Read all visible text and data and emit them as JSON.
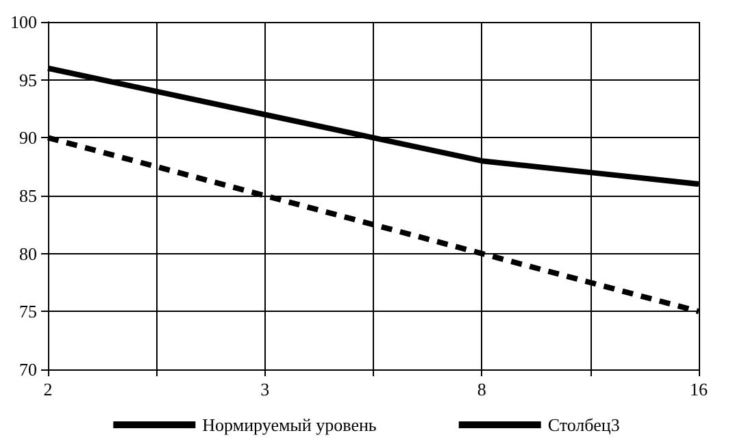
{
  "chart_data": {
    "type": "line",
    "categories": [
      "2",
      null,
      "3",
      null,
      "8",
      null,
      "16"
    ],
    "series": [
      {
        "name": "Нормируемый уровень",
        "color": "#000000",
        "line_style": "dashed",
        "values": [
          90,
          87.5,
          85,
          82.5,
          80,
          77.5,
          75
        ]
      },
      {
        "name": "Столбец3",
        "color": "#000000",
        "line_style": "solid",
        "values": [
          96,
          94,
          92,
          90,
          88,
          87,
          86
        ]
      }
    ],
    "ylim": [
      70,
      100
    ],
    "yticks": [
      70,
      75,
      80,
      85,
      90,
      95,
      100
    ],
    "grid": true,
    "legend": "bottom",
    "marker": "none"
  }
}
